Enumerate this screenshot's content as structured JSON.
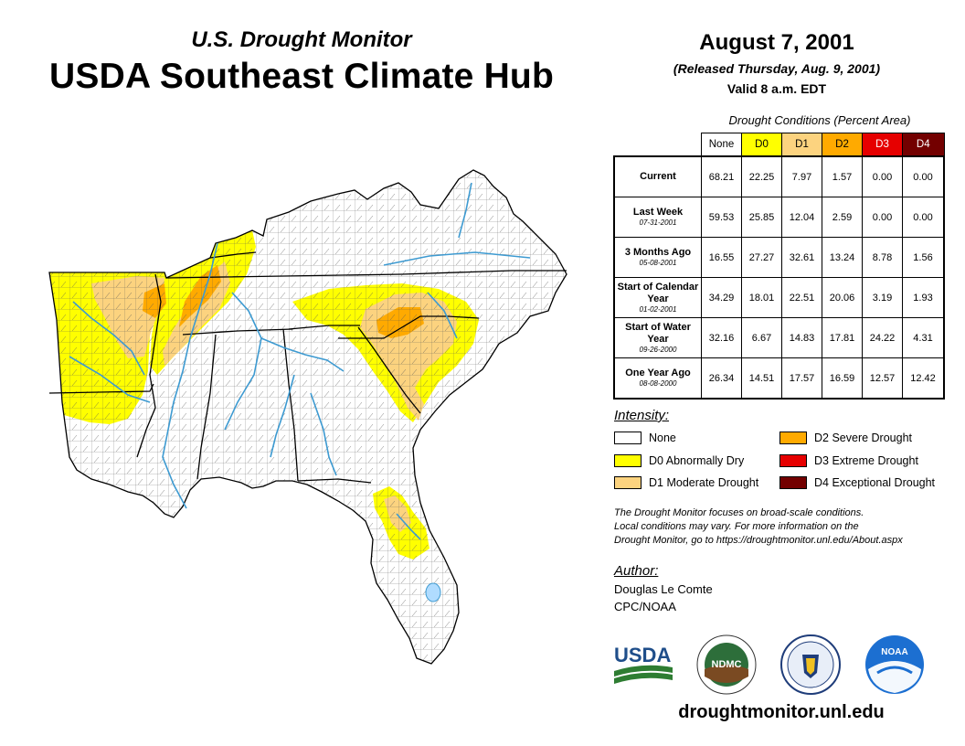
{
  "header": {
    "subtitle": "U.S. Drought Monitor",
    "title": "USDA Southeast Climate Hub",
    "date": "August 7, 2001",
    "released": "(Released Thursday, Aug. 9, 2001)",
    "valid": "Valid 8 a.m. EDT"
  },
  "table": {
    "caption": "Drought Conditions (Percent Area)",
    "columns": [
      "None",
      "D0",
      "D1",
      "D2",
      "D3",
      "D4"
    ],
    "column_colors": [
      "#ffffff",
      "#ffff00",
      "#fcd37f",
      "#ffaa00",
      "#e60000",
      "#730000"
    ],
    "rows": [
      {
        "label": "Current",
        "date": "",
        "values": [
          "68.21",
          "22.25",
          "7.97",
          "1.57",
          "0.00",
          "0.00"
        ]
      },
      {
        "label": "Last Week",
        "date": "07-31-2001",
        "values": [
          "59.53",
          "25.85",
          "12.04",
          "2.59",
          "0.00",
          "0.00"
        ]
      },
      {
        "label": "3 Months Ago",
        "date": "05-08-2001",
        "values": [
          "16.55",
          "27.27",
          "32.61",
          "13.24",
          "8.78",
          "1.56"
        ]
      },
      {
        "label": "Start of Calendar Year",
        "date": "01-02-2001",
        "values": [
          "34.29",
          "18.01",
          "22.51",
          "20.06",
          "3.19",
          "1.93"
        ]
      },
      {
        "label": "Start of Water Year",
        "date": "09-26-2000",
        "values": [
          "32.16",
          "6.67",
          "14.83",
          "17.81",
          "24.22",
          "4.31"
        ]
      },
      {
        "label": "One Year Ago",
        "date": "08-08-2000",
        "values": [
          "26.34",
          "14.51",
          "17.57",
          "16.59",
          "12.57",
          "12.42"
        ]
      }
    ]
  },
  "legend": {
    "title": "Intensity:",
    "items": [
      {
        "label": "None",
        "color": "#ffffff"
      },
      {
        "label": "D0 Abnormally Dry",
        "color": "#ffff00"
      },
      {
        "label": "D1 Moderate Drought",
        "color": "#fcd37f"
      },
      {
        "label": "D2 Severe Drought",
        "color": "#ffaa00"
      },
      {
        "label": "D3 Extreme Drought",
        "color": "#e60000"
      },
      {
        "label": "D4 Exceptional Drought",
        "color": "#730000"
      }
    ]
  },
  "note": {
    "line1": "The Drought Monitor focuses on broad-scale conditions.",
    "line2": "Local conditions may vary. For more information on the",
    "line3": "Drought Monitor, go to https://droughtmonitor.unl.edu/About.aspx"
  },
  "author": {
    "title": "Author:",
    "name": "Douglas Le Comte",
    "org": "CPC/NOAA"
  },
  "logos": {
    "usda": "USDA",
    "ndmc": "NDMC",
    "noaa": "NOAA"
  },
  "footer": {
    "url": "droughtmonitor.unl.edu"
  }
}
